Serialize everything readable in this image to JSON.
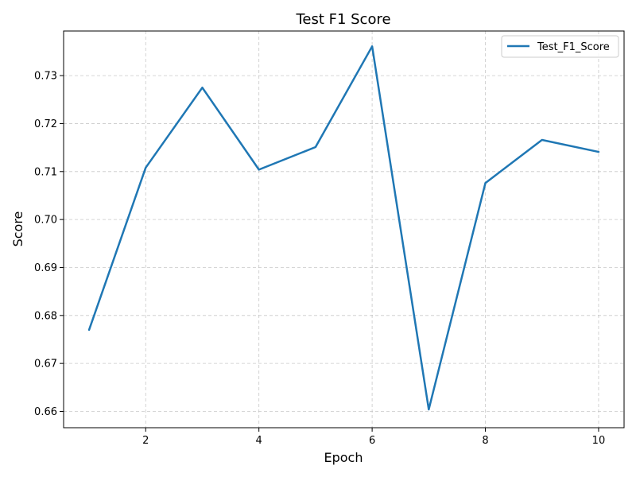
{
  "chart_data": {
    "type": "line",
    "title": "Test F1 Score",
    "xlabel": "Epoch",
    "ylabel": "Score",
    "x": [
      1,
      2,
      3,
      4,
      5,
      6,
      7,
      8,
      9,
      10
    ],
    "series": [
      {
        "name": "Test_F1_Score",
        "color": "#1f77b4",
        "values": [
          0.677,
          0.7108,
          0.7275,
          0.7104,
          0.7151,
          0.7361,
          0.6604,
          0.7076,
          0.7166,
          0.7141
        ]
      }
    ],
    "xlim": [
      0.55,
      10.45
    ],
    "ylim": [
      0.6566,
      0.7393
    ],
    "xticks": [
      2,
      4,
      6,
      8,
      10
    ],
    "xtick_labels": [
      "2",
      "4",
      "6",
      "8",
      "10"
    ],
    "yticks": [
      0.66,
      0.67,
      0.68,
      0.69,
      0.7,
      0.71,
      0.72,
      0.73
    ],
    "ytick_labels": [
      "0.66",
      "0.67",
      "0.68",
      "0.69",
      "0.70",
      "0.71",
      "0.72",
      "0.73"
    ],
    "grid": true,
    "legend_position": "top-right"
  }
}
